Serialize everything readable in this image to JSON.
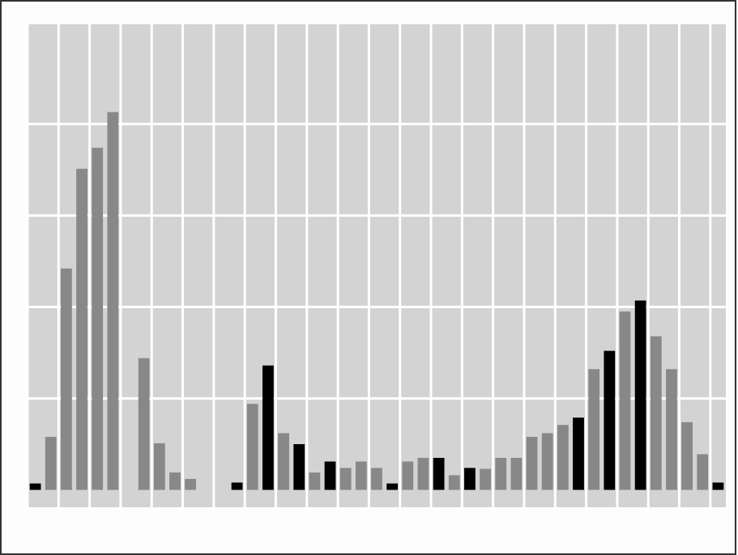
{
  "chart_data": {
    "type": "bar",
    "categories": [
      null,
      null,
      null,
      null,
      null,
      null,
      null,
      null,
      null,
      null,
      null,
      null,
      null,
      null,
      null,
      null,
      null,
      null,
      null,
      null,
      null,
      null,
      null,
      null,
      null,
      null,
      null,
      null,
      null,
      null,
      null,
      null,
      null,
      null,
      null,
      null,
      null,
      null,
      null,
      null,
      null,
      null,
      null,
      null,
      null
    ],
    "values": [
      0.07,
      0.58,
      2.42,
      3.51,
      3.74,
      4.13,
      0,
      1.44,
      0.51,
      0.19,
      0.12,
      0,
      0,
      0.08,
      0.94,
      1.36,
      0.62,
      0.5,
      0.19,
      0.31,
      0.24,
      0.31,
      0.24,
      0.07,
      0.31,
      0.35,
      0.35,
      0.16,
      0.24,
      0.23,
      0.35,
      0.35,
      0.58,
      0.62,
      0.71,
      0.79,
      1.32,
      1.52,
      1.95,
      2.07,
      1.68,
      1.32,
      0.74,
      0.39,
      0.08
    ],
    "colors": [
      "#000000",
      "#888888",
      "#888888",
      "#888888",
      "#888888",
      "#888888",
      "#888888",
      "#888888",
      "#888888",
      "#888888",
      "#888888",
      "#888888",
      "#888888",
      "#000000",
      "#888888",
      "#000000",
      "#888888",
      "#000000",
      "#888888",
      "#000000",
      "#888888",
      "#888888",
      "#888888",
      "#000000",
      "#888888",
      "#888888",
      "#000000",
      "#888888",
      "#000000",
      "#888888",
      "#888888",
      "#888888",
      "#888888",
      "#888888",
      "#888888",
      "#000000",
      "#888888",
      "#000000",
      "#888888",
      "#000000",
      "#888888",
      "#888888",
      "#888888",
      "#888888",
      "#000000"
    ],
    "ylim": [
      -0.19,
      5.09
    ],
    "yticks": [
      1,
      2,
      3,
      4
    ],
    "grid": true,
    "background": "#d3d3d3"
  }
}
